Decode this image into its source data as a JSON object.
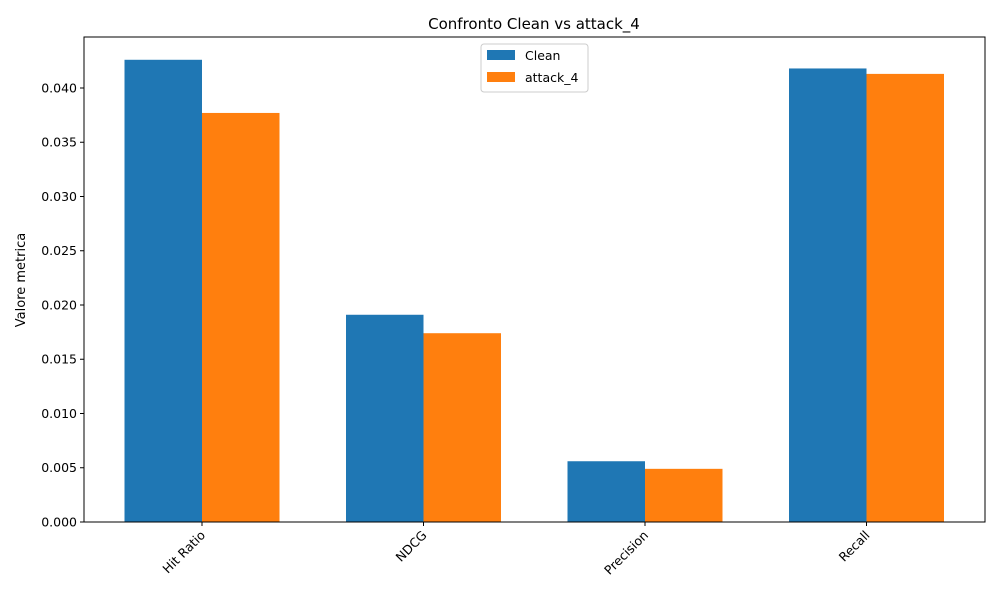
{
  "chart_data": {
    "type": "bar",
    "title": "Confronto Clean vs attack_4",
    "xlabel": "",
    "ylabel": "Valore metrica",
    "categories": [
      "Hit Ratio",
      "NDCG",
      "Precision",
      "Recall"
    ],
    "series": [
      {
        "name": "Clean",
        "color": "#1f77b4",
        "values": [
          0.0426,
          0.0191,
          0.0056,
          0.0418
        ]
      },
      {
        "name": "attack_4",
        "color": "#ff7f0e",
        "values": [
          0.0377,
          0.0174,
          0.0049,
          0.0413
        ]
      }
    ],
    "ylim": [
      0,
      0.0447
    ],
    "yticks": [
      "0.000",
      "0.005",
      "0.010",
      "0.015",
      "0.020",
      "0.025",
      "0.030",
      "0.035",
      "0.040"
    ],
    "legend_position": "top-center",
    "grid": false
  }
}
